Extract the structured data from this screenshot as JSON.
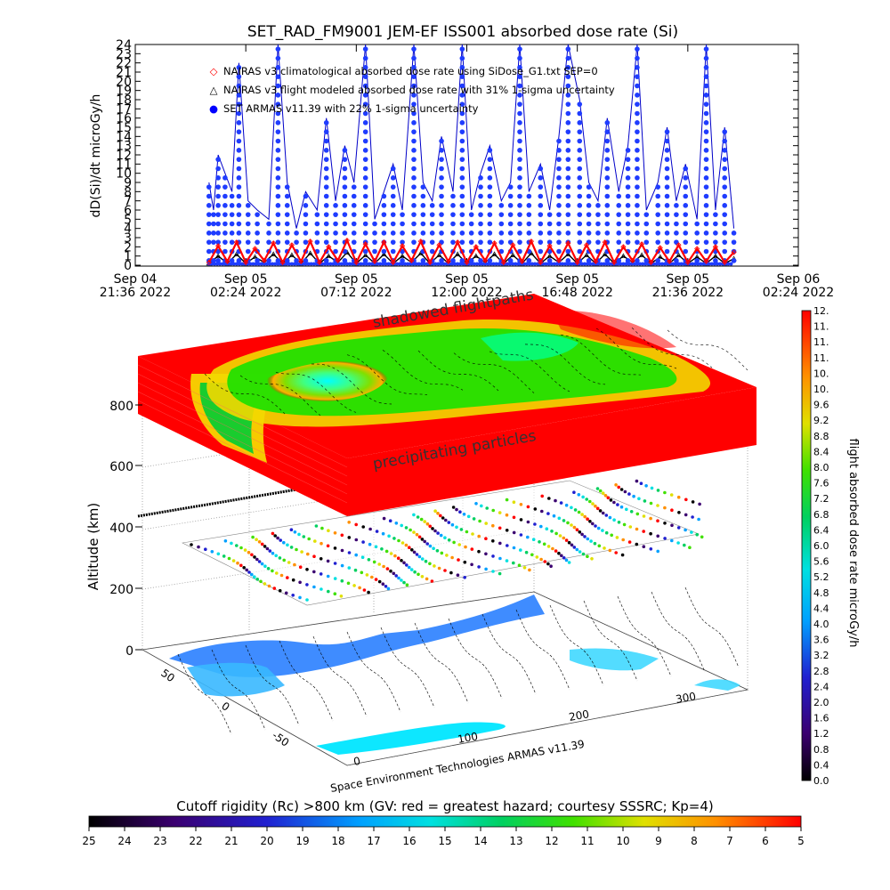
{
  "chart_data": [
    {
      "type": "line",
      "title": "SET_RAD_FM9001  JEM-EF ISS001 absorbed dose rate (Si)",
      "ylabel": "dD(Si)/dt microGy/h",
      "ylim": [
        0,
        24
      ],
      "yticks": [
        "0",
        "1",
        "2",
        "3",
        "4",
        "5",
        "6",
        "7",
        "8",
        "9",
        "10",
        "11",
        "12",
        "13",
        "14",
        "15",
        "16",
        "17",
        "18",
        "19",
        "20",
        "21",
        "22",
        "23",
        "24"
      ],
      "xticks": [
        {
          "day": "Sep 04",
          "time": "21:36 2022",
          "hours": 0
        },
        {
          "day": "Sep 05",
          "time": "02:24 2022",
          "hours": 4.8
        },
        {
          "day": "Sep 05",
          "time": "07:12 2022",
          "hours": 9.6
        },
        {
          "day": "Sep 05",
          "time": "12:00 2022",
          "hours": 14.4
        },
        {
          "day": "Sep 05",
          "time": "16:48 2022",
          "hours": 19.2
        },
        {
          "day": "Sep 05",
          "time": "21:36 2022",
          "hours": 24.0
        },
        {
          "day": "Sep 06",
          "time": "02:24 2022",
          "hours": 28.8
        }
      ],
      "xlim_hours": [
        0,
        28.8
      ],
      "legend": [
        {
          "marker": "◇",
          "color": "#ff0000",
          "label": "NAIRAS v3 climatological absorbed dose rate using SiDose_G1.txt SEP=0"
        },
        {
          "marker": "△",
          "color": "#000000",
          "label": "NAIRAS v3 flight modeled absorbed dose rate with 31% 1-sigma uncertainty"
        },
        {
          "marker": "●",
          "color": "#0000ff",
          "label": "SET ARMAS v11.39 with 22% 1-sigma uncertainty"
        }
      ],
      "series": [
        {
          "name": "SET ARMAS v11.39 with 22% 1-sigma uncertainty",
          "color": "#1f3cff",
          "x_hours": [
            3.2,
            3.4,
            3.6,
            3.9,
            4.2,
            4.5,
            4.9,
            5.3,
            5.8,
            6.2,
            6.6,
            7.0,
            7.4,
            7.9,
            8.3,
            8.7,
            9.1,
            9.5,
            10.0,
            10.4,
            10.8,
            11.2,
            11.6,
            12.1,
            12.5,
            12.9,
            13.3,
            13.8,
            14.2,
            14.6,
            15.0,
            15.4,
            15.9,
            16.3,
            16.7,
            17.1,
            17.6,
            18.0,
            18.4,
            18.8,
            19.3,
            19.7,
            20.1,
            20.5,
            21.0,
            21.4,
            21.8,
            22.2,
            22.7,
            23.1,
            23.5,
            23.9,
            24.4,
            24.8,
            25.2,
            25.6,
            26.0
          ],
          "y": [
            9,
            6,
            12,
            10,
            8,
            22,
            7,
            6,
            5,
            24,
            9,
            4,
            8,
            6,
            16,
            7,
            13,
            9,
            24,
            5,
            8,
            11,
            6,
            24,
            9,
            7,
            14,
            8,
            24,
            6,
            10,
            13,
            7,
            9,
            24,
            8,
            11,
            6,
            14,
            24,
            18,
            9,
            7,
            16,
            8,
            13,
            24,
            6,
            9,
            15,
            7,
            11,
            5,
            24,
            6,
            15,
            4
          ]
        },
        {
          "name": "NAIRAS v3 climatological absorbed dose rate using SiDose_G1.txt SEP=0",
          "color": "#ff0000",
          "x_hours": [
            3.2,
            3.6,
            4.0,
            4.4,
            4.8,
            5.2,
            5.6,
            6.0,
            6.4,
            6.8,
            7.2,
            7.6,
            8.0,
            8.4,
            8.8,
            9.2,
            9.6,
            10.0,
            10.4,
            10.8,
            11.2,
            11.6,
            12.0,
            12.4,
            12.8,
            13.2,
            13.6,
            14.0,
            14.4,
            14.8,
            15.2,
            15.6,
            16.0,
            16.4,
            16.8,
            17.2,
            17.6,
            18.0,
            18.4,
            18.8,
            19.2,
            19.6,
            20.0,
            20.4,
            20.8,
            21.2,
            21.6,
            22.0,
            22.4,
            22.8,
            23.2,
            23.6,
            24.0,
            24.4,
            24.8,
            25.2,
            25.6,
            26.0
          ],
          "y": [
            0.3,
            2.1,
            0.4,
            2.5,
            0.3,
            1.8,
            0.5,
            2.4,
            0.3,
            2.2,
            0.4,
            2.6,
            0.3,
            2.0,
            0.5,
            2.7,
            0.3,
            2.3,
            0.4,
            2.5,
            0.3,
            2.1,
            0.5,
            2.6,
            0.3,
            2.2,
            0.4,
            2.5,
            0.3,
            2.0,
            0.5,
            2.4,
            0.3,
            2.2,
            0.4,
            2.6,
            0.3,
            2.1,
            0.5,
            2.4,
            0.3,
            2.2,
            0.4,
            2.5,
            0.3,
            2.0,
            0.5,
            2.3,
            0.3,
            1.9,
            0.4,
            2.2,
            0.3,
            1.8,
            0.4,
            2.0,
            0.3,
            1.4
          ]
        },
        {
          "name": "NAIRAS v3 flight modeled absorbed dose rate with 31% 1-sigma uncertainty",
          "color": "#000000",
          "x_hours": [
            3.2,
            3.6,
            4.0,
            4.4,
            4.8,
            5.2,
            5.6,
            6.0,
            6.4,
            6.8,
            7.2,
            7.6,
            8.0,
            8.4,
            8.8,
            9.2,
            9.6,
            10.0,
            10.4,
            10.8,
            11.2,
            11.6,
            12.0,
            12.4,
            12.8,
            13.2,
            13.6,
            14.0,
            14.4,
            14.8,
            15.2,
            15.6,
            16.0,
            16.4,
            16.8,
            17.2,
            17.6,
            18.0,
            18.4,
            18.8,
            19.2,
            19.6,
            20.0,
            20.4,
            20.8,
            21.2,
            21.6,
            22.0,
            22.4,
            22.8,
            23.2,
            23.6,
            24.0,
            24.4,
            24.8,
            25.2,
            25.6,
            26.0
          ],
          "y": [
            0.2,
            1.0,
            0.2,
            1.2,
            0.2,
            0.9,
            0.3,
            1.2,
            0.2,
            1.1,
            0.2,
            1.3,
            0.2,
            1.0,
            0.3,
            1.4,
            0.2,
            1.1,
            0.2,
            1.2,
            0.2,
            1.0,
            0.3,
            1.3,
            0.2,
            1.1,
            0.2,
            1.2,
            0.2,
            1.0,
            0.3,
            1.2,
            0.2,
            1.1,
            0.2,
            1.3,
            0.2,
            1.0,
            0.3,
            1.2,
            0.2,
            1.1,
            0.2,
            1.2,
            0.2,
            1.0,
            0.3,
            1.1,
            0.2,
            0.9,
            0.2,
            1.1,
            0.2,
            0.9,
            0.2,
            1.0,
            0.2,
            0.7
          ]
        }
      ]
    },
    {
      "type": "heatmap",
      "title": "",
      "zlabel": "Altitude (km)",
      "zticks": [
        "0",
        "200",
        "400",
        "600",
        "800"
      ],
      "lon_ticks": [
        "0",
        "100",
        "200",
        "300"
      ],
      "lat_ticks": [
        "50",
        "0",
        "-50"
      ],
      "annotations": [
        "shadowed flightpaths",
        "precipitating particles"
      ],
      "credit": "Space Environment Technologies ARMAS v11.39",
      "colorbar": {
        "label": "flight absorbed dose rate microGy/h",
        "ticks": [
          "0.0",
          "0.4",
          "0.8",
          "1.2",
          "1.6",
          "2.0",
          "2.4",
          "2.8",
          "3.2",
          "3.6",
          "4.0",
          "4.4",
          "4.8",
          "5.2",
          "5.6",
          "6.0",
          "6.4",
          "6.8",
          "7.2",
          "7.6",
          "8.0",
          "8.4",
          "8.8",
          "9.2",
          "9.6",
          "10.",
          "10.",
          "11.",
          "11.",
          "11.",
          "12."
        ]
      }
    },
    {
      "type": "heatmap",
      "title": "Cutoff rigidity (Rc) >800 km (GV: red = greatest hazard; courtesy SSSRC; Kp=4)",
      "colorbar": {
        "ticks": [
          "25",
          "24",
          "23",
          "22",
          "21",
          "20",
          "19",
          "18",
          "17",
          "16",
          "15",
          "14",
          "13",
          "12",
          "11",
          "10",
          "9",
          "8",
          "7",
          "6",
          "5"
        ]
      }
    }
  ]
}
